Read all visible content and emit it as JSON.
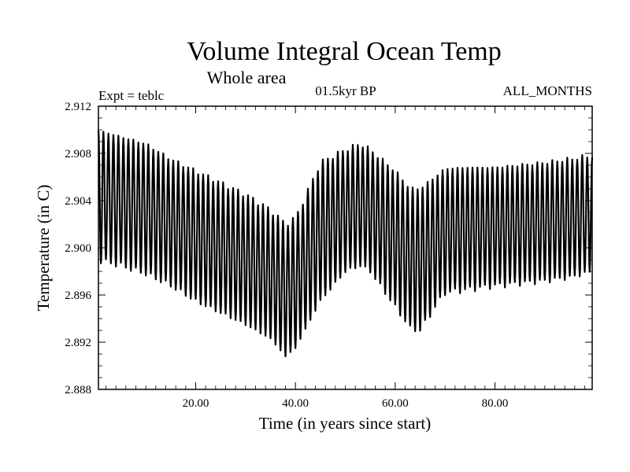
{
  "chart_data": {
    "type": "line",
    "title": "Volume Integral Ocean Temp",
    "subtitle": "Whole area",
    "experiment_label": "Expt = teblc",
    "period_label": "01.5kyr BP",
    "months_label": "ALL_MONTHS",
    "xlabel": "Time (in years since start)",
    "ylabel": "Temperature (in C)",
    "xlim": [
      0.5,
      99.5
    ],
    "ylim": [
      2.888,
      2.912
    ],
    "x_ticks": [
      20,
      40,
      60,
      80
    ],
    "x_tick_labels": [
      "20.00",
      "40.00",
      "60.00",
      "80.00"
    ],
    "y_ticks": [
      2.888,
      2.892,
      2.896,
      2.9,
      2.904,
      2.908,
      2.912
    ],
    "y_tick_labels": [
      "2.888",
      "2.892",
      "2.896",
      "2.900",
      "2.904",
      "2.908",
      "2.912"
    ],
    "series": [
      {
        "name": "Volume integral temperature",
        "description": "monthly values oscillating seasonally once per year",
        "x": [
          0,
          5,
          10,
          15,
          20,
          25,
          30,
          35,
          38,
          40,
          45,
          50,
          53,
          55,
          60,
          63,
          65,
          68,
          70,
          75,
          80,
          85,
          90,
          95,
          99.5
        ],
        "annual_max": [
          2.91,
          2.9094,
          2.9088,
          2.9075,
          2.9065,
          2.9055,
          2.9045,
          2.9032,
          2.902,
          2.9025,
          2.9072,
          2.9083,
          2.9088,
          2.9083,
          2.9065,
          2.905,
          2.905,
          2.906,
          2.9067,
          2.9068,
          2.9068,
          2.907,
          2.9072,
          2.9075,
          2.9078
        ],
        "annual_min": [
          2.899,
          2.8985,
          2.8978,
          2.8968,
          2.8955,
          2.8945,
          2.8935,
          2.8923,
          2.8908,
          2.8915,
          2.8955,
          2.898,
          2.8985,
          2.898,
          2.895,
          2.8932,
          2.893,
          2.895,
          2.8962,
          2.8965,
          2.8968,
          2.897,
          2.8972,
          2.8975,
          2.898
        ]
      }
    ]
  }
}
